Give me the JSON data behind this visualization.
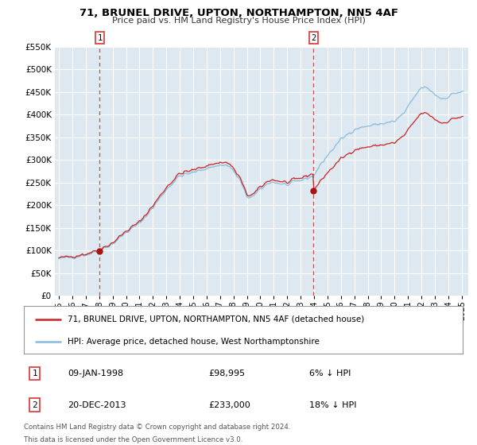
{
  "title": "71, BRUNEL DRIVE, UPTON, NORTHAMPTON, NN5 4AF",
  "subtitle": "Price paid vs. HM Land Registry's House Price Index (HPI)",
  "legend_line1": "71, BRUNEL DRIVE, UPTON, NORTHAMPTON, NN5 4AF (detached house)",
  "legend_line2": "HPI: Average price, detached house, West Northamptonshire",
  "footer1": "Contains HM Land Registry data © Crown copyright and database right 2024.",
  "footer2": "This data is licensed under the Open Government Licence v3.0.",
  "sale1_label": "1",
  "sale1_date": "09-JAN-1998",
  "sale1_price": "£98,995",
  "sale1_hpi": "6% ↓ HPI",
  "sale2_label": "2",
  "sale2_date": "20-DEC-2013",
  "sale2_price": "£233,000",
  "sale2_hpi": "18% ↓ HPI",
  "sale1_x": 1998.04,
  "sale1_y": 98995,
  "sale2_x": 2013.96,
  "sale2_y": 233000,
  "vline1_x": 1998.04,
  "vline2_x": 2013.96,
  "hpi_color": "#88bbdd",
  "price_color": "#cc2222",
  "vline_color": "#dd4444",
  "dot_color": "#aa1111",
  "background_color": "#dde8f0",
  "grid_color": "#ffffff",
  "ylim": [
    0,
    550000
  ],
  "xlim_start": 1994.7,
  "xlim_end": 2025.5
}
